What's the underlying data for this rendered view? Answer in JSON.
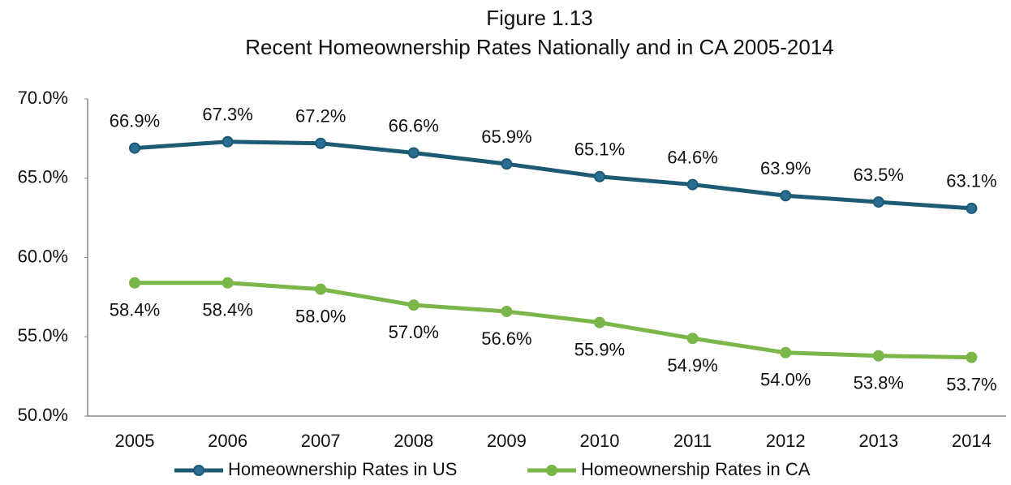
{
  "chart_data": {
    "type": "line",
    "title": "Figure 1.13",
    "subtitle": "Recent Homeownership Rates Nationally and in CA 2005-2014",
    "categories": [
      "2005",
      "2006",
      "2007",
      "2008",
      "2009",
      "2010",
      "2011",
      "2012",
      "2013",
      "2014"
    ],
    "series": [
      {
        "name": "Homeownership Rates in US",
        "color": "#1d5a73",
        "marker_color": "#2a6f93",
        "values": [
          66.9,
          67.3,
          67.2,
          66.6,
          65.9,
          65.1,
          64.6,
          63.9,
          63.5,
          63.1
        ],
        "value_labels": [
          "66.9%",
          "67.3%",
          "67.2%",
          "66.6%",
          "65.9%",
          "65.1%",
          "64.6%",
          "63.9%",
          "63.5%",
          "63.1%"
        ]
      },
      {
        "name": "Homeownership Rates in CA",
        "color": "#7ab648",
        "marker_color": "#7ab648",
        "values": [
          58.4,
          58.4,
          58.0,
          57.0,
          56.6,
          55.9,
          54.9,
          54.0,
          53.8,
          53.7
        ],
        "value_labels": [
          "58.4%",
          "58.4%",
          "58.0%",
          "57.0%",
          "56.6%",
          "55.9%",
          "54.9%",
          "54.0%",
          "53.8%",
          "53.7%"
        ]
      }
    ],
    "ylim": [
      50,
      70
    ],
    "yticks": [
      {
        "value": 50,
        "label": "50.0%"
      },
      {
        "value": 55,
        "label": "55.0%"
      },
      {
        "value": 60,
        "label": "60.0%"
      },
      {
        "value": 65,
        "label": "65.0%"
      },
      {
        "value": 70,
        "label": "70.0%"
      }
    ],
    "grid": false,
    "legend": "bottom"
  }
}
